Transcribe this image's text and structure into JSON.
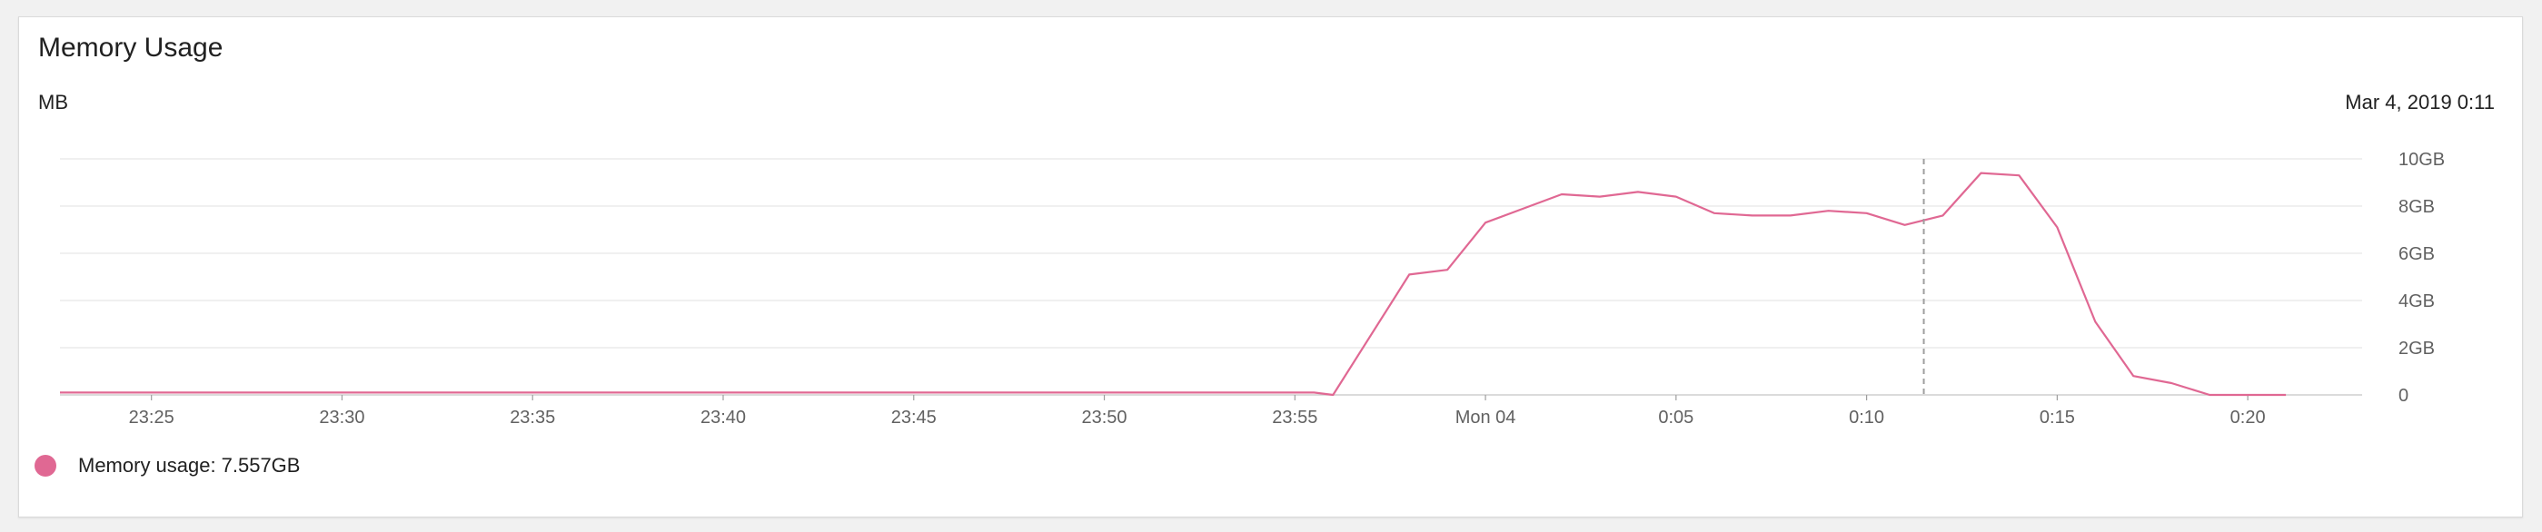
{
  "panel": {
    "title": "Memory Usage",
    "unit_label": "MB",
    "hover_time": "Mar 4, 2019 0:11",
    "legend": {
      "label": "Memory usage:",
      "value": "7.557GB",
      "color": "#e06893"
    }
  },
  "chart_data": {
    "type": "line",
    "x_tick_labels": [
      "23:25",
      "23:30",
      "23:35",
      "23:40",
      "23:45",
      "23:50",
      "23:55",
      "Mon 04",
      "0:05",
      "0:10",
      "0:15",
      "0:20"
    ],
    "y_tick_labels": [
      "0",
      "2GB",
      "4GB",
      "6GB",
      "8GB",
      "10GB"
    ],
    "ylim": [
      0,
      10
    ],
    "xlim_minutes": [
      -37.4,
      23.0
    ],
    "y_unit": "GB",
    "grid": true,
    "hover_marker_minutes": 11.5,
    "series": [
      {
        "name": "Memory usage",
        "color": "#e06893",
        "x_minutes": [
          -37.4,
          -35,
          -30,
          -25,
          -20,
          -15,
          -10,
          -5,
          -4.5,
          -4,
          -2.0,
          -1.0,
          0,
          1,
          2,
          3,
          4,
          5,
          6,
          7,
          8,
          9,
          10,
          11,
          12,
          13,
          14,
          15,
          16,
          17,
          18,
          19,
          20,
          21
        ],
        "values": [
          0.1,
          0.1,
          0.1,
          0.1,
          0.1,
          0.1,
          0.1,
          0.1,
          0.1,
          0.0,
          5.1,
          5.3,
          7.3,
          7.9,
          8.5,
          8.4,
          8.6,
          8.4,
          7.7,
          7.6,
          7.6,
          7.8,
          7.7,
          7.2,
          7.6,
          9.4,
          9.3,
          7.1,
          3.1,
          0.8,
          0.5,
          0.0,
          0.0,
          0.0
        ]
      }
    ]
  }
}
